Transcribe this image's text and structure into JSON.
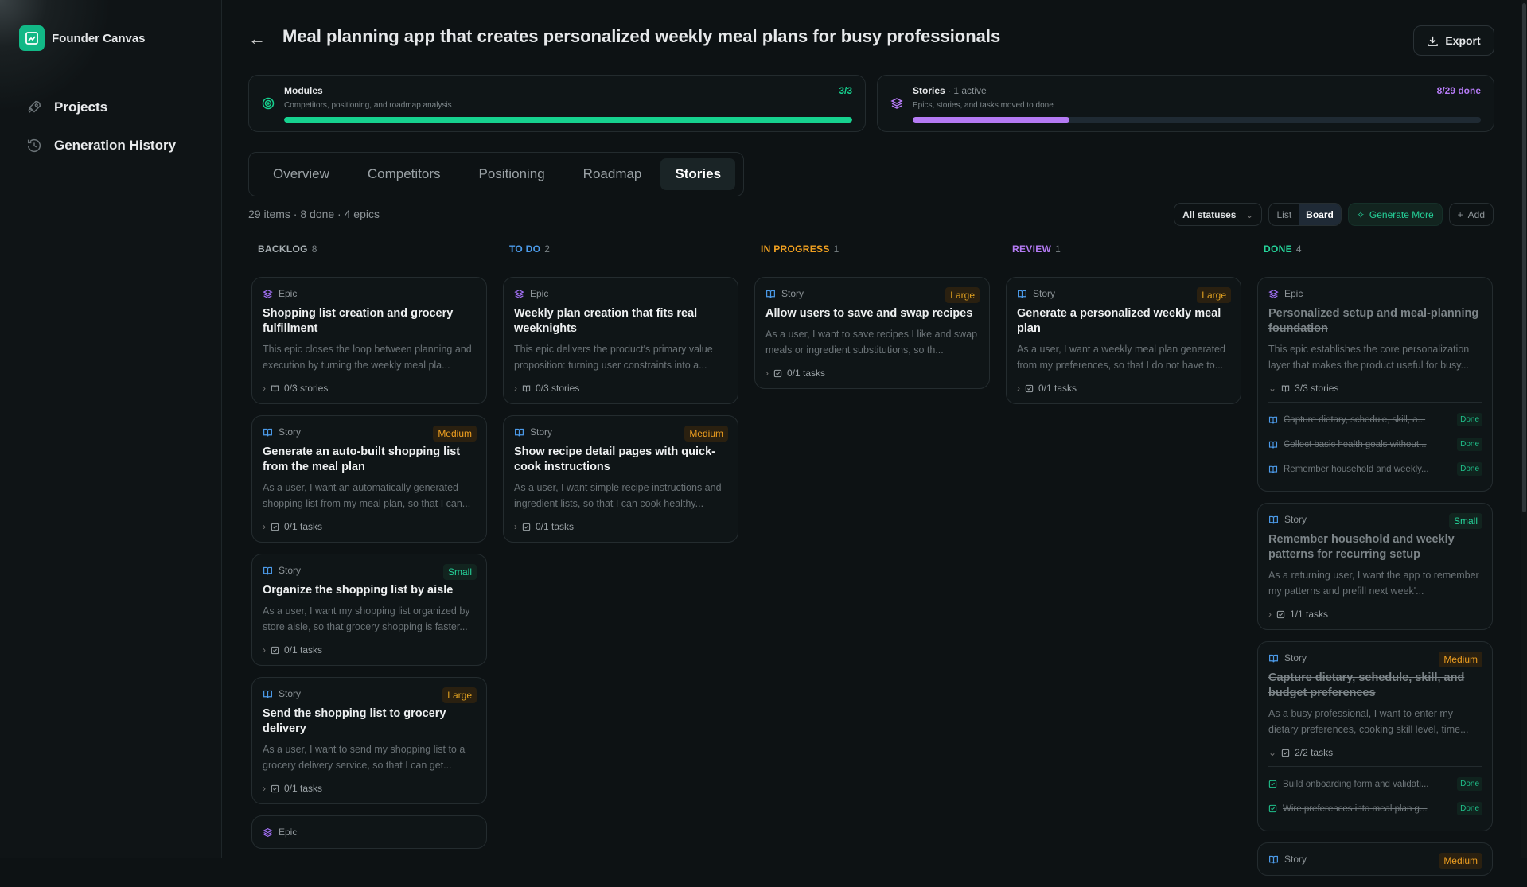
{
  "app": {
    "name": "Founder Canvas"
  },
  "sidebar": {
    "items": [
      {
        "label": "Projects",
        "icon": "rocket-icon"
      },
      {
        "label": "Generation History",
        "icon": "history-icon"
      }
    ]
  },
  "header": {
    "title": "Meal planning app that creates personalized weekly meal plans for busy professionals",
    "export": "Export"
  },
  "modules": {
    "title": "Modules",
    "subtitle": "Competitors, positioning, and roadmap analysis",
    "count": "3/3",
    "progress": 1.0,
    "color": "#16d28f"
  },
  "stories_summary": {
    "title": "Stories",
    "active": " · 1 active",
    "subtitle": "Epics, stories, and tasks moved to done",
    "count": "8/29 done",
    "progress": 0.276,
    "color": "#b57bf5"
  },
  "tabs": [
    "Overview",
    "Competitors",
    "Positioning",
    "Roadmap",
    "Stories"
  ],
  "active_tab": "Stories",
  "stats": "29 items · 8 done · 4 epics",
  "toolbar": {
    "filter": "All statuses",
    "list": "List",
    "board": "Board",
    "generate": "Generate More",
    "add": "Add"
  },
  "colors": {
    "epic": "#a371f7",
    "story": "#4c9bea",
    "Small": "#25d39a",
    "Medium": "#f0a020",
    "Large": "#e0a020"
  },
  "columns": [
    {
      "name": "BACKLOG",
      "count": "8",
      "color": "#a8b0b4",
      "cards": [
        {
          "kind": "Epic",
          "title": "Shopping list creation and grocery fulfillment",
          "desc": "This epic closes the loop between planning and execution by turning the weekly meal pla...",
          "foot": "0/3 stories",
          "done": false
        },
        {
          "kind": "Story",
          "size": "Medium",
          "title": "Generate an auto-built shopping list from the meal plan",
          "desc": "As a user, I want an automatically generated shopping list from my meal plan, so that I can...",
          "foot": "0/1 tasks",
          "done": false
        },
        {
          "kind": "Story",
          "size": "Small",
          "title": "Organize the shopping list by aisle",
          "desc": "As a user, I want my shopping list organized by store aisle, so that grocery shopping is faster...",
          "foot": "0/1 tasks",
          "done": false
        },
        {
          "kind": "Story",
          "size": "Large",
          "title": "Send the shopping list to grocery delivery",
          "desc": "As a user, I want to send my shopping list to a grocery delivery service, so that I can get...",
          "foot": "0/1 tasks",
          "done": false
        },
        {
          "kind": "Epic",
          "title": "",
          "desc": "",
          "foot": "",
          "done": false
        }
      ]
    },
    {
      "name": "TO DO",
      "count": "2",
      "color": "#4c9bea",
      "cards": [
        {
          "kind": "Epic",
          "title": "Weekly plan creation that fits real weeknights",
          "desc": "This epic delivers the product's primary value proposition: turning user constraints into a...",
          "foot": "0/3 stories",
          "done": false
        },
        {
          "kind": "Story",
          "size": "Medium",
          "title": "Show recipe detail pages with quick-cook instructions",
          "desc": "As a user, I want simple recipe instructions and ingredient lists, so that I can cook healthy...",
          "foot": "0/1 tasks",
          "done": false
        }
      ]
    },
    {
      "name": "IN PROGRESS",
      "count": "1",
      "color": "#f0a020",
      "cards": [
        {
          "kind": "Story",
          "size": "Large",
          "title": "Allow users to save and swap recipes",
          "desc": "As a user, I want to save recipes I like and swap meals or ingredient substitutions, so th...",
          "foot": "0/1 tasks",
          "done": false
        }
      ]
    },
    {
      "name": "REVIEW",
      "count": "1",
      "color": "#b57bf5",
      "cards": [
        {
          "kind": "Story",
          "size": "Large",
          "title": "Generate a personalized weekly meal plan",
          "desc": "As a user, I want a weekly meal plan generated from my preferences, so that I do not have to...",
          "foot": "0/1 tasks",
          "done": false
        }
      ]
    },
    {
      "name": "DONE",
      "count": "4",
      "color": "#25d39a",
      "cards": [
        {
          "kind": "Epic",
          "title": "Personalized setup and meal-planning foundation",
          "desc": "This epic establishes the core personalization layer that makes the product useful for busy...",
          "foot": "3/3 stories",
          "done": true,
          "expanded": true,
          "subtype": "story",
          "subs": [
            {
              "text": "Capture dietary, schedule, skill, a...",
              "status": "Done"
            },
            {
              "text": "Collect basic health goals without...",
              "status": "Done"
            },
            {
              "text": "Remember household and weekly...",
              "status": "Done"
            }
          ]
        },
        {
          "kind": "Story",
          "size": "Small",
          "title": "Remember household and weekly patterns for recurring setup",
          "desc": "As a returning user, I want the app to remember my patterns and prefill next week'...",
          "foot": "1/1 tasks",
          "done": true
        },
        {
          "kind": "Story",
          "size": "Medium",
          "title": "Capture dietary, schedule, skill, and budget preferences",
          "desc": "As a busy professional, I want to enter my dietary preferences, cooking skill level, time...",
          "foot": "2/2 tasks",
          "done": true,
          "expanded": true,
          "subtype": "task",
          "subs": [
            {
              "text": "Build onboarding form and validati...",
              "status": "Done"
            },
            {
              "text": "Wire preferences into meal plan g...",
              "status": "Done"
            }
          ]
        },
        {
          "kind": "Story",
          "size": "Medium",
          "title": "",
          "desc": "",
          "foot": "",
          "done": true
        }
      ]
    }
  ]
}
